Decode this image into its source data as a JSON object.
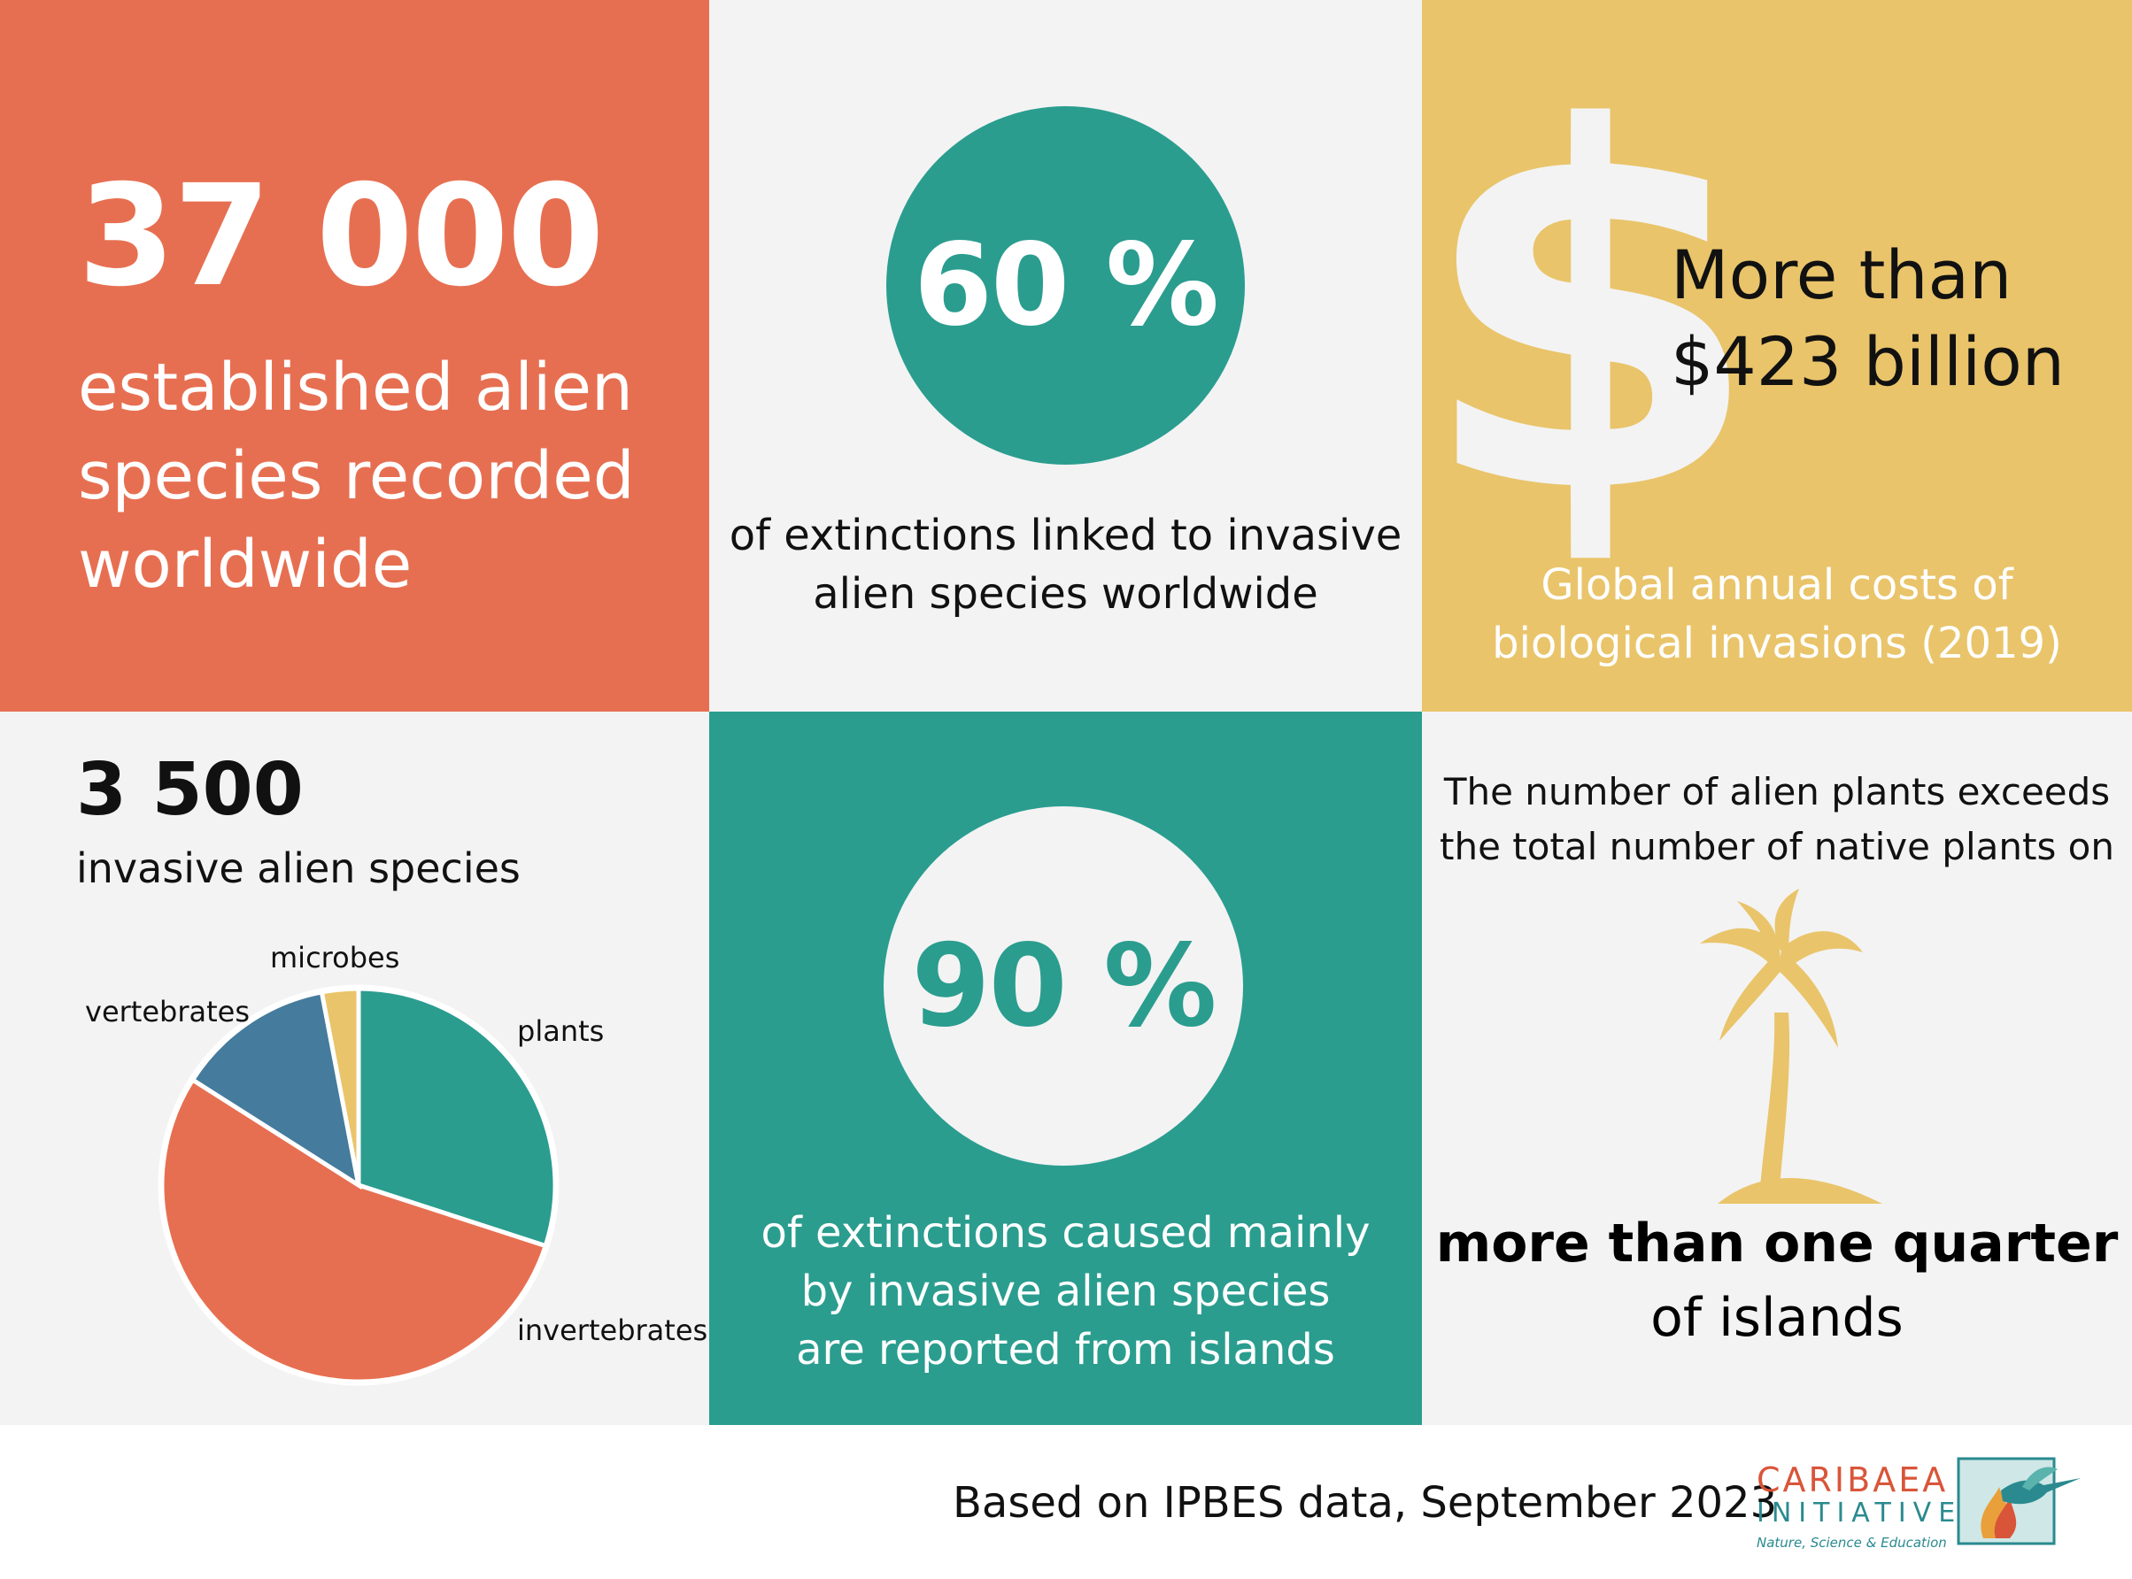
{
  "colors": {
    "coral": "#e76f51",
    "teal": "#2a9d8f",
    "sand": "#e9c46a",
    "light_gray": "#f3f3f3",
    "slate_blue": "#457b9d",
    "white": "#ffffff"
  },
  "established": {
    "number": "37 000",
    "description": "established alien species recorded worldwide"
  },
  "extinctions_linked": {
    "percent": "60 %",
    "description_lines": [
      "of extinctions linked to invasive",
      "alien species worldwide"
    ]
  },
  "costs": {
    "icon": "dollar-sign-icon",
    "amount_lines": [
      "More than",
      "$423 billion"
    ],
    "description_lines": [
      "Global annual costs of",
      "biological invasions (2019)"
    ]
  },
  "invasive": {
    "number": "3 500",
    "subtitle": "invasive alien species"
  },
  "chart_data": {
    "type": "pie",
    "title": "",
    "categories": [
      "plants",
      "invertebrates",
      "vertebrates",
      "microbes"
    ],
    "values": [
      30,
      54,
      13,
      3
    ],
    "colors": [
      "#2a9d8f",
      "#e76f51",
      "#457b9d",
      "#e9c46a"
    ],
    "legend": "none (labels beside slices)"
  },
  "islands": {
    "percent": "90 %",
    "description_lines": [
      "of extinctions caused mainly",
      "by invasive alien species",
      "are reported from islands"
    ]
  },
  "alien_plants": {
    "text_lines": [
      "The number of alien plants exceeds",
      "the total number of native plants on"
    ],
    "icon": "palm-island-icon",
    "bold_text": "more than one quarter",
    "end_text": "of islands"
  },
  "footer": {
    "source": "Based on IPBES data, September 2023",
    "logo_name": "CARIBAEA",
    "logo_sub": "INITIATIVE",
    "logo_tagline": "Nature, Science & Education"
  }
}
